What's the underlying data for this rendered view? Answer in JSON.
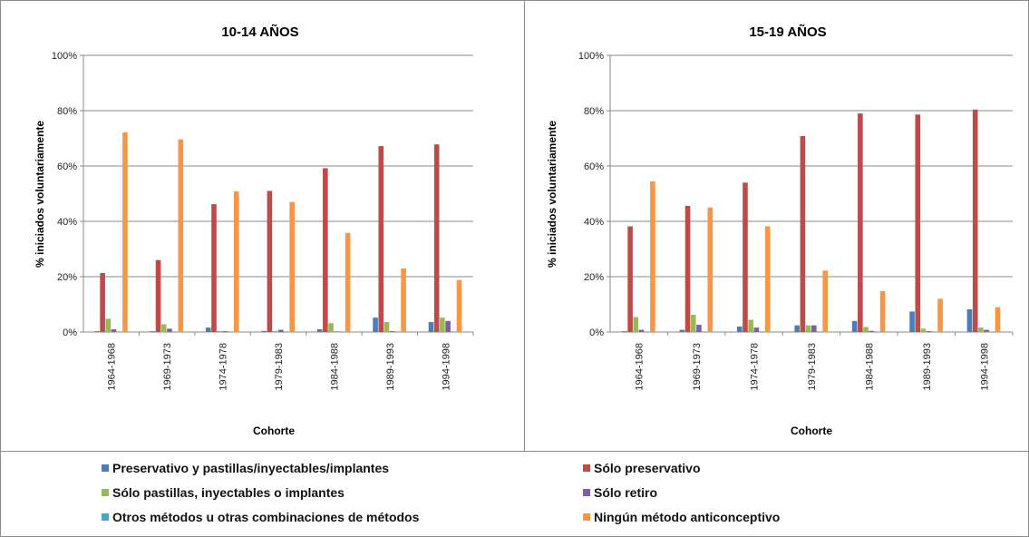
{
  "chart_data": [
    {
      "type": "bar",
      "title": "10-14 AÑOS",
      "xlabel": "Cohorte",
      "ylabel": "% iniciados voluntariamente",
      "ylim": [
        0,
        100
      ],
      "yticks": [
        "0%",
        "20%",
        "40%",
        "60%",
        "80%",
        "100%"
      ],
      "categories": [
        "1964-1968",
        "1969-1973",
        "1974-1978",
        "1979-1983",
        "1984-1988",
        "1989-1993",
        "1994-1998"
      ],
      "grid": true,
      "series": [
        {
          "name": "Preservativo y pastillas/inyectables/implantes",
          "values": [
            0.3,
            0.3,
            1.6,
            0.4,
            1.0,
            5.2,
            3.6
          ]
        },
        {
          "name": "Sólo preservativo",
          "values": [
            21.3,
            26.0,
            46.2,
            51.0,
            59.2,
            67.2,
            67.8
          ]
        },
        {
          "name": "Sólo pastillas, inyectables o implantes",
          "values": [
            4.8,
            2.8,
            0.4,
            0.4,
            3.2,
            3.6,
            5.2
          ]
        },
        {
          "name": "Sólo retiro",
          "values": [
            1.0,
            1.2,
            0.3,
            0.8,
            0.2,
            0.3,
            4.0
          ]
        },
        {
          "name": "Otros métodos u otras combinaciones de métodos",
          "values": [
            0.2,
            0.2,
            0.2,
            0.2,
            0.2,
            0.2,
            0.2
          ]
        },
        {
          "name": "Ningún método anticonceptivo",
          "values": [
            72.2,
            69.6,
            50.8,
            47.0,
            35.8,
            23.0,
            18.8
          ]
        }
      ]
    },
    {
      "type": "bar",
      "title": "15-19 AÑOS",
      "xlabel": "Cohorte",
      "ylabel": "% iniciados voluntariamente",
      "ylim": [
        0,
        100
      ],
      "yticks": [
        "0%",
        "20%",
        "40%",
        "60%",
        "80%",
        "100%"
      ],
      "categories": [
        "1964-1968",
        "1969-1973",
        "1974-1978",
        "1979-1983",
        "1984-1988",
        "1989-1993",
        "1994-1998"
      ],
      "grid": true,
      "series": [
        {
          "name": "Preservativo y pastillas/inyectables/implantes",
          "values": [
            0.3,
            0.8,
            2.0,
            2.4,
            4.0,
            7.4,
            8.2
          ]
        },
        {
          "name": "Sólo preservativo",
          "values": [
            38.2,
            45.6,
            54.0,
            70.8,
            79.0,
            78.6,
            80.4
          ]
        },
        {
          "name": "Sólo pastillas, inyectables o implantes",
          "values": [
            5.4,
            6.2,
            4.4,
            2.4,
            1.8,
            1.2,
            1.6
          ]
        },
        {
          "name": "Sólo retiro",
          "values": [
            0.8,
            2.6,
            1.6,
            2.4,
            0.4,
            0.3,
            0.8
          ]
        },
        {
          "name": "Otros métodos u otras combinaciones de métodos",
          "values": [
            0.2,
            0.2,
            0.2,
            0.2,
            0.2,
            0.2,
            0.2
          ]
        },
        {
          "name": "Ningún método anticonceptivo",
          "values": [
            54.4,
            45.0,
            38.2,
            22.2,
            14.8,
            12.0,
            9.0
          ]
        }
      ]
    }
  ],
  "legend": {
    "placement": "bottom",
    "items": [
      {
        "label": "Preservativo y pastillas/inyectables/implantes",
        "color": "#4a7ebb"
      },
      {
        "label": "Sólo preservativo",
        "color": "#be4b48"
      },
      {
        "label": "Sólo pastillas, inyectables o implantes",
        "color": "#98b954"
      },
      {
        "label": "Sólo retiro",
        "color": "#7d60a0"
      },
      {
        "label": "Otros métodos u otras combinaciones de métodos",
        "color": "#46aac5"
      },
      {
        "label": "Ningún método anticonceptivo",
        "color": "#f79646"
      }
    ]
  },
  "colors": {
    "preservativo_pastillas": "#4a7ebb",
    "solo_preservativo": "#be4b48",
    "solo_pastillas": "#98b954",
    "solo_retiro": "#7d60a0",
    "otros": "#46aac5",
    "ninguno": "#f79646"
  }
}
